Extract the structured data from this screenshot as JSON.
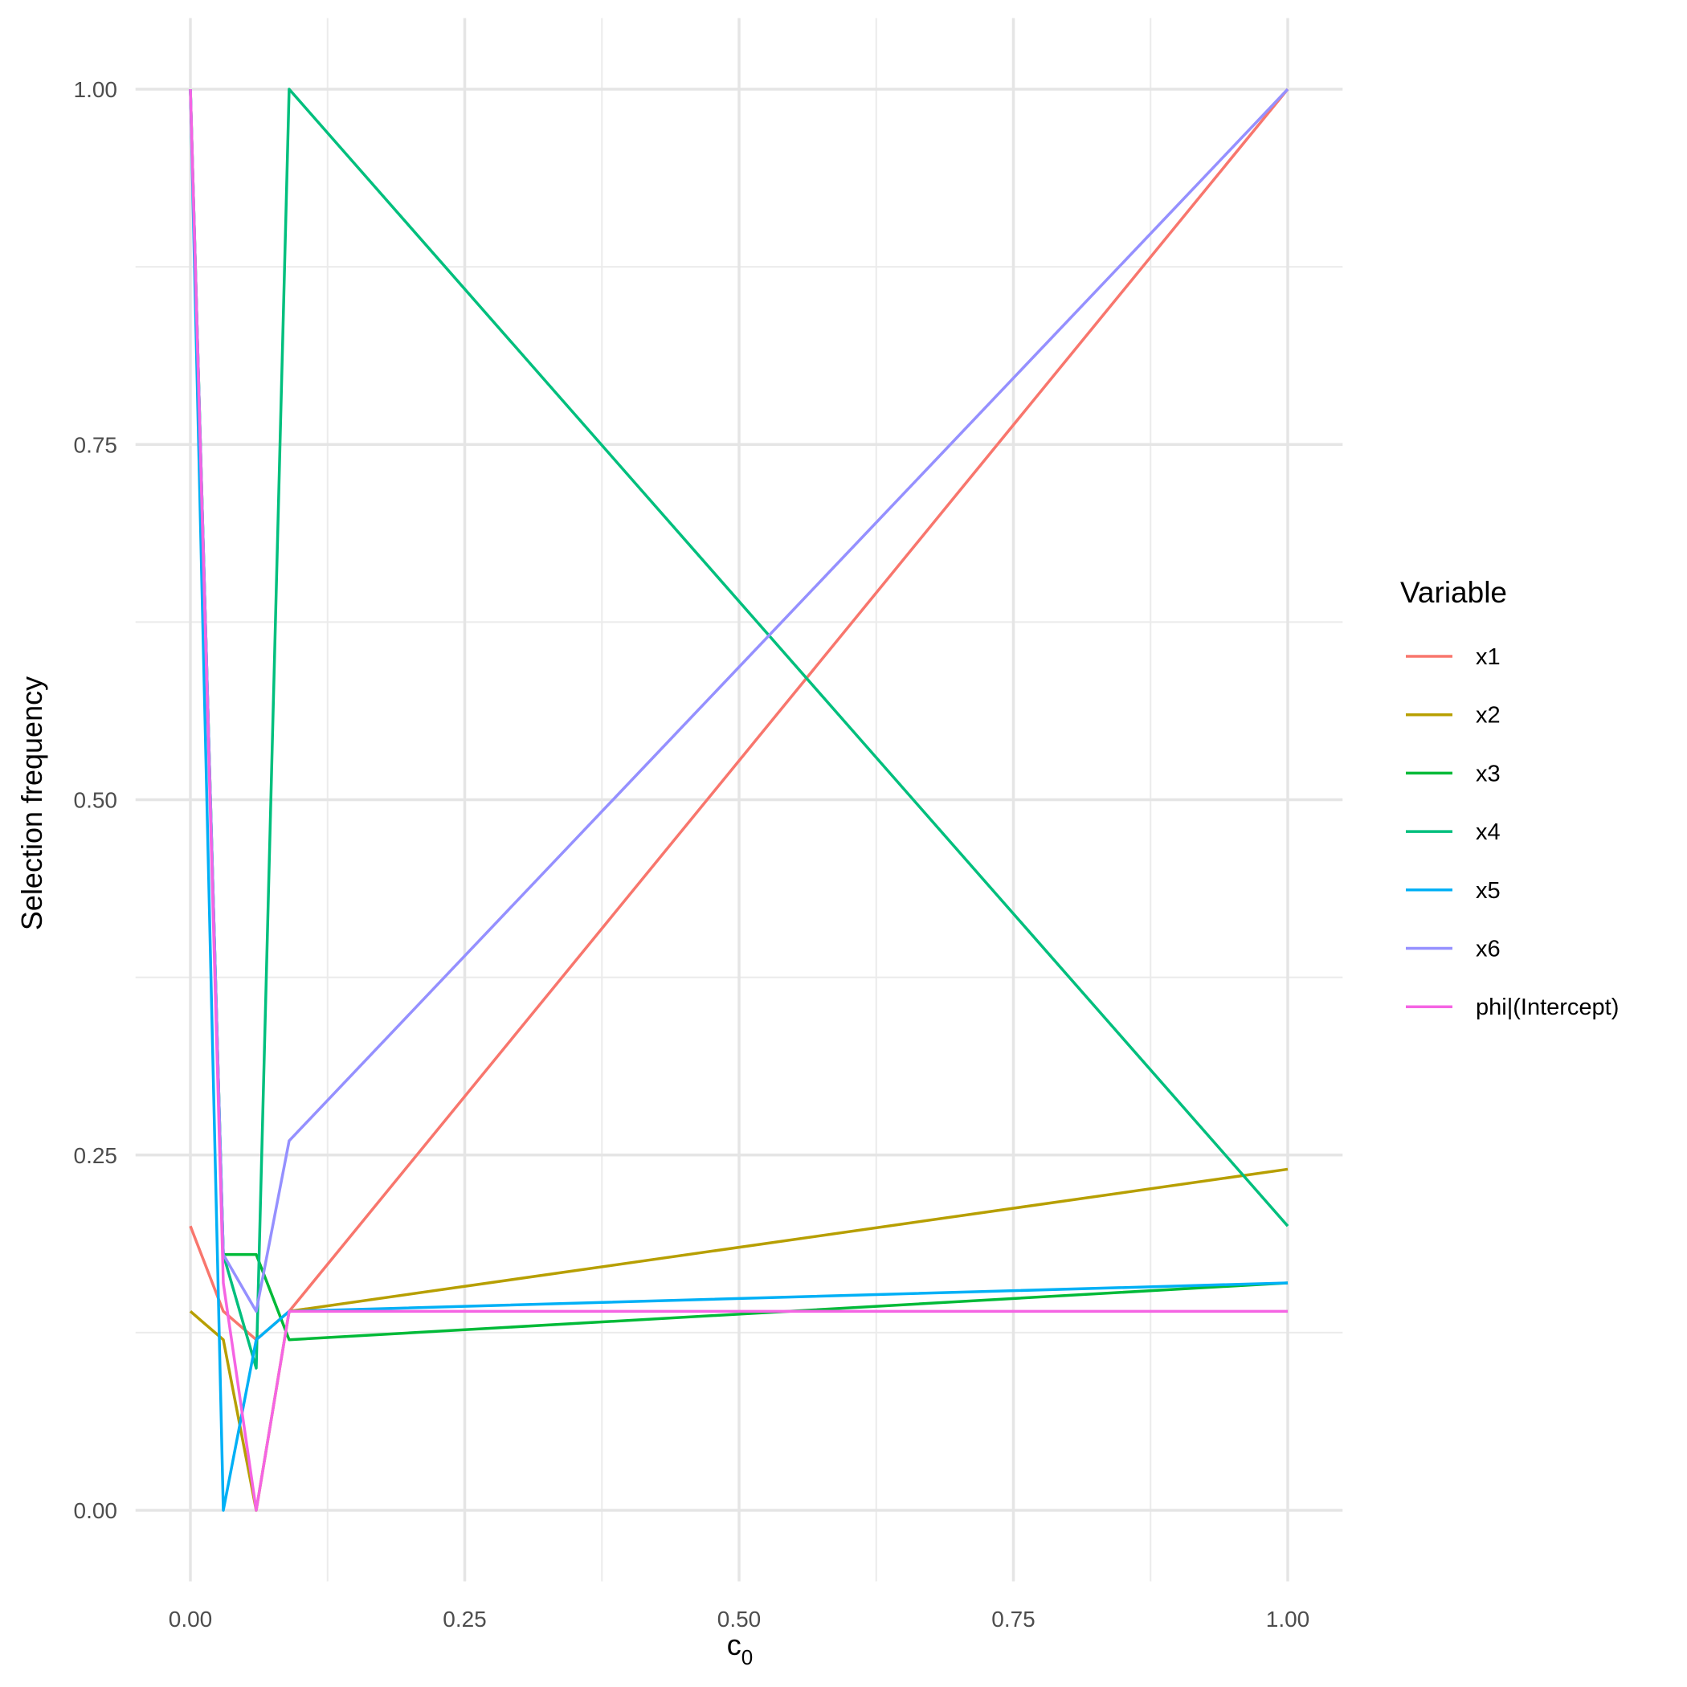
{
  "chart_data": {
    "type": "line",
    "title": "",
    "xlabel": "c",
    "xlabel_subscript": "0",
    "ylabel": "Selection frequency",
    "xlim": [
      -0.05,
      1.05
    ],
    "ylim": [
      -0.05,
      1.05
    ],
    "x_ticks": [
      0,
      0.25,
      0.5,
      0.75,
      1
    ],
    "x_tick_labels": [
      "0.00",
      "0.25",
      "0.50",
      "0.75",
      "1.00"
    ],
    "y_ticks": [
      0,
      0.25,
      0.5,
      0.75,
      1
    ],
    "y_tick_labels": [
      "0.00",
      "0.25",
      "0.50",
      "0.75",
      "1.00"
    ],
    "grid": true,
    "legend_title": "Variable",
    "legend_position": "right",
    "x": [
      0,
      0.03,
      0.06,
      0.09,
      1
    ],
    "series": [
      {
        "name": "x1",
        "color": "#F8766D",
        "values": [
          0.2,
          0.14,
          0.12,
          0.14,
          1.0
        ]
      },
      {
        "name": "x2",
        "color": "#B79F00",
        "values": [
          0.14,
          0.12,
          0.0,
          0.14,
          0.24
        ]
      },
      {
        "name": "x3",
        "color": "#00BA38",
        "values": [
          1.0,
          0.18,
          0.18,
          0.12,
          0.16
        ]
      },
      {
        "name": "x4",
        "color": "#00BF7D",
        "values": [
          1.0,
          0.18,
          0.1,
          1.0,
          0.2
        ]
      },
      {
        "name": "x5",
        "color": "#00B0F6",
        "values": [
          1.0,
          0.0,
          0.12,
          0.14,
          0.16
        ]
      },
      {
        "name": "x6",
        "color": "#9590FF",
        "values": [
          1.0,
          0.18,
          0.14,
          0.26,
          1.0
        ]
      },
      {
        "name": "phi|(Intercept)",
        "color": "#F564E3",
        "values": [
          1.0,
          0.16,
          0.0,
          0.14,
          0.14
        ]
      }
    ]
  }
}
